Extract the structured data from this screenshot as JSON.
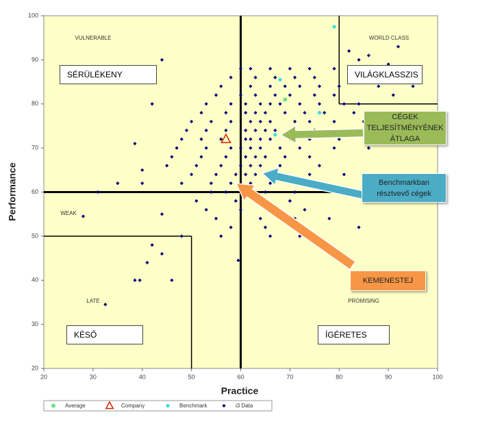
{
  "chart_data": {
    "type": "scatter",
    "xlabel": "Practice",
    "ylabel": "Performance",
    "xlim": [
      20,
      100
    ],
    "ylim": [
      20,
      100
    ],
    "xticks": [
      20,
      30,
      40,
      50,
      60,
      70,
      80,
      90,
      100
    ],
    "yticks": [
      20,
      30,
      40,
      50,
      60,
      70,
      80,
      90,
      100
    ],
    "background": "#ffffc8",
    "dividers": [
      {
        "x": [
          60,
          60
        ],
        "y": [
          20,
          100
        ],
        "style": "heavy"
      },
      {
        "x": [
          20,
          100
        ],
        "y": [
          60,
          60
        ],
        "style": "heavy"
      },
      {
        "x": [
          20,
          50
        ],
        "y": [
          50,
          50
        ],
        "style": "light"
      },
      {
        "x": [
          50,
          50
        ],
        "y": [
          20,
          50
        ],
        "style": "light"
      },
      {
        "x": [
          80,
          80
        ],
        "y": [
          80,
          100
        ],
        "style": "light"
      },
      {
        "x": [
          80,
          100
        ],
        "y": [
          80,
          80
        ],
        "style": "light"
      }
    ],
    "region_labels": [
      "VULNERABLE",
      "WORLD CLASS",
      "WEAK",
      "LATE",
      "PROMISING"
    ],
    "region_boxes": [
      "SÉRÜLÉKENY",
      "VILÁGKLASSZIS",
      "KÉSŐ",
      "ÍGÉRETES"
    ],
    "annotations": [
      {
        "text": "CÉGEK TELJESÍTMÉNYÉNEK ÁTLAGA",
        "color": "#9bbb59"
      },
      {
        "text": "Benchmarkban résztvevő cégek",
        "color": "#4bacc6"
      },
      {
        "text": "KEMENESTEJ",
        "color": "#f79646"
      }
    ],
    "series": [
      {
        "name": "Average",
        "color": "#66e08a",
        "marker": "square",
        "x": [
          69
        ],
        "values": [
          81
        ]
      },
      {
        "name": "Company",
        "color": "#e8a020",
        "marker": "triangle",
        "x": [
          57
        ],
        "values": [
          72
        ]
      },
      {
        "name": "Benchmark",
        "color": "#33e0e0",
        "marker": "circle",
        "x": [
          79,
          68,
          76,
          67
        ],
        "values": [
          97.5,
          85.5,
          78,
          73
        ]
      },
      {
        "name": "i3 Data",
        "color": "#00007f",
        "marker": "diamond",
        "x": [
          60,
          62,
          66,
          70,
          74,
          79,
          58,
          63,
          67,
          71,
          75,
          56,
          62,
          66,
          69,
          72,
          76,
          80,
          55,
          60,
          63,
          67,
          70,
          75,
          79,
          53,
          58,
          61,
          64,
          66,
          68,
          72,
          76,
          81,
          84,
          52,
          57,
          61,
          63,
          65,
          69,
          73,
          77,
          83,
          50,
          54,
          58,
          62,
          64,
          66,
          71,
          74,
          79,
          85,
          49,
          53,
          57,
          61,
          63,
          65,
          67,
          71,
          75,
          82,
          48,
          52,
          56,
          61,
          62,
          64,
          66,
          70,
          74,
          80,
          47,
          53,
          58,
          60,
          62,
          64,
          68,
          72,
          79,
          86,
          46,
          52,
          57,
          61,
          63,
          65,
          69,
          74,
          45,
          51,
          56,
          60,
          62,
          64,
          68,
          76,
          50,
          55,
          59,
          61,
          63,
          67,
          74,
          81,
          48,
          54,
          58,
          62,
          66,
          73,
          90,
          54,
          57,
          63,
          65,
          71,
          51,
          59,
          64,
          70,
          85,
          53,
          60,
          66,
          73,
          55,
          64,
          71,
          78,
          58,
          65,
          84,
          66,
          72,
          82,
          84,
          86,
          88,
          90,
          92,
          93,
          95,
          88,
          91,
          85,
          28,
          32.5,
          38.5,
          39.5,
          41,
          42,
          44,
          46,
          44,
          42,
          38.5,
          40,
          40,
          35,
          31,
          44,
          48,
          56,
          59.5
        ],
        "values": [
          88,
          88,
          88,
          88,
          88,
          88,
          86,
          86,
          86,
          86,
          86,
          84,
          84,
          84,
          84,
          84,
          84,
          84,
          82,
          82,
          82,
          82,
          82,
          82,
          82,
          80,
          80,
          80,
          80,
          80,
          80,
          80,
          80,
          80,
          80,
          78,
          78,
          78,
          78,
          78,
          78,
          78,
          78,
          78,
          76,
          76,
          76,
          76,
          76,
          76,
          76,
          76,
          76,
          76,
          74,
          74,
          74,
          74,
          74,
          74,
          74,
          74,
          74,
          74,
          72,
          72,
          72,
          72,
          72,
          72,
          72,
          72,
          72,
          72,
          70,
          70,
          70,
          70,
          70,
          70,
          70,
          70,
          70,
          70,
          68,
          68,
          68,
          68,
          68,
          68,
          68,
          68,
          66,
          66,
          66,
          66,
          66,
          66,
          66,
          66,
          64,
          64,
          64,
          64,
          64,
          64,
          64,
          64,
          62,
          62,
          62,
          62,
          62,
          62,
          62,
          60,
          60,
          60,
          60,
          60,
          58,
          58,
          58,
          58,
          58,
          56,
          56,
          56,
          56,
          54,
          54,
          54,
          54,
          52,
          52,
          52,
          50,
          50,
          92,
          90,
          91,
          88,
          89,
          93,
          86,
          84,
          84,
          82,
          87,
          54.5,
          34.5,
          40,
          40,
          44,
          48,
          46,
          40,
          90,
          80,
          71,
          65,
          62,
          62,
          60,
          55,
          50,
          50,
          44.5
        ]
      }
    ]
  }
}
